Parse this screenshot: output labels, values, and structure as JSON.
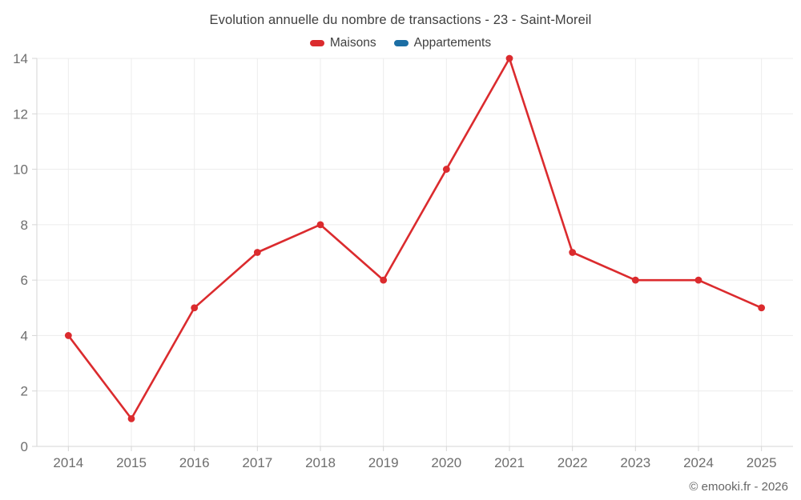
{
  "header": {
    "title": "Evolution annuelle du nombre de transactions - 23 - Saint-Moreil"
  },
  "legend": [
    {
      "label": "Maisons",
      "color": "#db2b2e"
    },
    {
      "label": "Appartements",
      "color": "#1c6ea4"
    }
  ],
  "footer": {
    "copyright": "© emooki.fr - 2026"
  },
  "chart_data": {
    "type": "line",
    "title": "Evolution annuelle du nombre de transactions - 23 - Saint-Moreil",
    "categories": [
      "2014",
      "2015",
      "2016",
      "2017",
      "2018",
      "2019",
      "2020",
      "2021",
      "2022",
      "2023",
      "2024",
      "2025"
    ],
    "series": [
      {
        "name": "Maisons",
        "color": "#db2b2e",
        "values": [
          4,
          1,
          5,
          7,
          8,
          6,
          10,
          14,
          7,
          6,
          6,
          5
        ]
      },
      {
        "name": "Appartements",
        "color": "#1c6ea4",
        "values": []
      }
    ],
    "xlabel": "",
    "ylabel": "",
    "ylim": [
      0,
      14
    ],
    "yticks": [
      0,
      2,
      4,
      6,
      8,
      10,
      12,
      14
    ],
    "grid": true,
    "legend_position": "top",
    "colors": {
      "gridline": "#ececec",
      "axis_line": "#d6d6d6",
      "tick_label": "#6e6e6e",
      "title_text": "#3f3f3f"
    }
  }
}
